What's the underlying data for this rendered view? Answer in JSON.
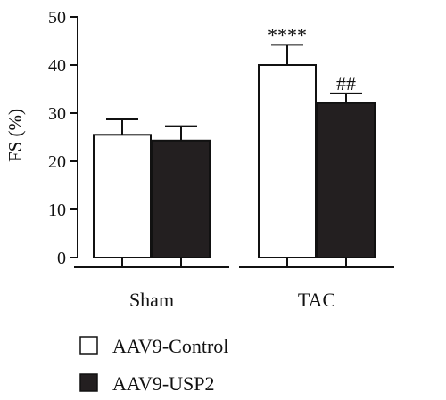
{
  "chart_data": {
    "type": "bar",
    "title": "",
    "xlabel": "",
    "ylabel": "FS (%)",
    "ylim": [
      0,
      50
    ],
    "yticks": [
      0,
      10,
      20,
      30,
      40,
      50
    ],
    "categories": [
      "Sham",
      "TAC"
    ],
    "series": [
      {
        "name": "AAV9-Control",
        "color": "#ffffff",
        "values": [
          25.5,
          40.0
        ],
        "errors": [
          3.2,
          4.2
        ]
      },
      {
        "name": "AAV9-USP2",
        "color": "#231f20",
        "values": [
          24.3,
          32.1
        ],
        "errors": [
          3.0,
          2.0
        ]
      }
    ],
    "annotations": [
      {
        "category": "TAC",
        "series": "AAV9-Control",
        "text": "****"
      },
      {
        "category": "TAC",
        "series": "AAV9-USP2",
        "text": "##"
      }
    ],
    "legend_position": "bottom-left",
    "grid": false
  }
}
